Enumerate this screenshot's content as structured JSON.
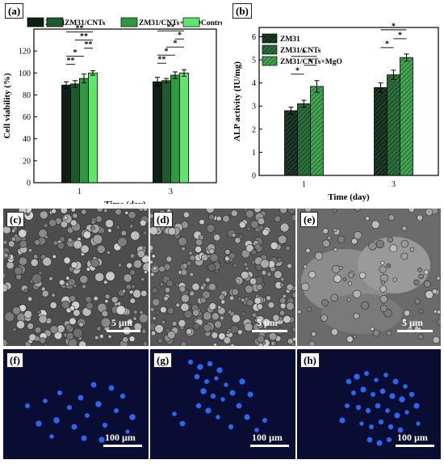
{
  "panel_labels": [
    "(a)",
    "(b)",
    "(c)",
    "(d)",
    "(e)",
    "(f)",
    "(g)",
    "(h)"
  ],
  "colors": {
    "ZM31": "#0e2016",
    "ZM31/CNTs": "#1c5a2d",
    "ZM31/CNTs+MgO": "#2d9a3f",
    "Control": "#5ee66b"
  },
  "chart_data": [
    {
      "type": "bar",
      "panel": "(a)",
      "categories": [
        "1",
        "3"
      ],
      "series": [
        {
          "name": "ZM31",
          "values": [
            89,
            92
          ],
          "errors": [
            3,
            4
          ],
          "pattern": "solid"
        },
        {
          "name": "ZM31/CNTs",
          "values": [
            90,
            93
          ],
          "errors": [
            3,
            2
          ],
          "pattern": "solid"
        },
        {
          "name": "ZM31/CNTs+MgO",
          "values": [
            95,
            98
          ],
          "errors": [
            4,
            3
          ],
          "pattern": "solid"
        },
        {
          "name": "Control",
          "values": [
            100,
            100
          ],
          "errors": [
            2,
            3
          ],
          "pattern": "solid"
        }
      ],
      "xlabel": "Time (day)",
      "ylabel": "Cell viability (%)",
      "ylim": [
        0,
        140
      ],
      "yticks": [
        "0",
        "20",
        "40",
        "60",
        "80",
        "100",
        "120"
      ],
      "significance": [
        {
          "group": 0,
          "from": 0,
          "to": 1,
          "label": "**"
        },
        {
          "group": 0,
          "from": 0,
          "to": 2,
          "label": "*"
        },
        {
          "group": 0,
          "from": 2,
          "to": 3,
          "label": "**"
        },
        {
          "group": 0,
          "from": 1,
          "to": 3,
          "label": "**"
        },
        {
          "group": 0,
          "from": 0,
          "to": 3,
          "label": "**"
        },
        {
          "group": 1,
          "from": 0,
          "to": 1,
          "label": "**"
        },
        {
          "group": 1,
          "from": 0,
          "to": 2,
          "label": "*"
        },
        {
          "group": 1,
          "from": 1,
          "to": 3,
          "label": "*"
        },
        {
          "group": 1,
          "from": 2,
          "to": 3,
          "label": "*"
        },
        {
          "group": 1,
          "from": 0,
          "to": 3,
          "label": "**"
        }
      ],
      "legend_placement": "top"
    },
    {
      "type": "bar",
      "panel": "(b)",
      "categories": [
        "1",
        "3"
      ],
      "series": [
        {
          "name": "ZM31",
          "values": [
            2.8,
            3.8
          ],
          "errors": [
            0.15,
            0.2
          ],
          "pattern": "hatch-dense"
        },
        {
          "name": "ZM31/CNTs",
          "values": [
            3.1,
            4.35
          ],
          "errors": [
            0.15,
            0.2
          ],
          "pattern": "hatch-medium"
        },
        {
          "name": "ZM31/CNTs+MgO",
          "values": [
            3.85,
            5.1
          ],
          "errors": [
            0.25,
            0.15
          ],
          "pattern": "hatch-light"
        }
      ],
      "xlabel": "Time (day)",
      "ylabel": "ALP activity (IU/mg)",
      "ylim": [
        0,
        6.4
      ],
      "yticks": [
        "0",
        "1",
        "2",
        "3",
        "4",
        "5",
        "6"
      ],
      "significance": [
        {
          "group": 0,
          "from": 0,
          "to": 1,
          "label": "*"
        },
        {
          "group": 0,
          "from": 1,
          "to": 2,
          "label": "*"
        },
        {
          "group": 0,
          "from": 0,
          "to": 2,
          "label": "*"
        },
        {
          "group": 1,
          "from": 0,
          "to": 1,
          "label": "*"
        },
        {
          "group": 1,
          "from": 1,
          "to": 2,
          "label": "*"
        },
        {
          "group": 1,
          "from": 0,
          "to": 2,
          "label": "*"
        }
      ],
      "legend_placement": "top-left"
    }
  ],
  "micrographs": [
    {
      "label": "(c)",
      "scale": "5 µm"
    },
    {
      "label": "(d)",
      "scale": "5 µm"
    },
    {
      "label": "(e)",
      "scale": "5 µm"
    },
    {
      "label": "(f)",
      "scale": "100 µm"
    },
    {
      "label": "(g)",
      "scale": "100 µm"
    },
    {
      "label": "(h)",
      "scale": "100 µm"
    }
  ]
}
